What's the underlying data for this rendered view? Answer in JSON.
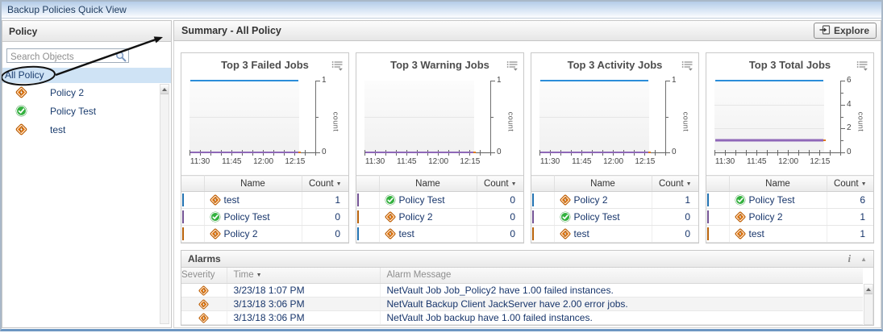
{
  "window": {
    "title": "Backup Policies Quick View"
  },
  "sidebar": {
    "header": "Policy",
    "search_placeholder": "Search Objects",
    "root_item": "All Policy",
    "items": [
      {
        "label": "Policy 2",
        "icon": "policy-warning-icon"
      },
      {
        "label": "Policy Test",
        "icon": "policy-ok-icon"
      },
      {
        "label": "test",
        "icon": "policy-warning-icon"
      }
    ]
  },
  "main": {
    "header": "Summary - All Policy",
    "explore_label": "Explore"
  },
  "table_headers": {
    "name": "Name",
    "count": "Count"
  },
  "icons": {
    "sort_desc": "▼",
    "info": "i",
    "collapse": "▲"
  },
  "colors": {
    "series_blue": "#2b8dd9",
    "series_purple": "#8f68b8",
    "series_orange": "#e2790f",
    "selection_bg": "#cfe3f5"
  },
  "annotation": {
    "circled_item": "All Policy",
    "points_to": "Summary - All Policy"
  },
  "chart_data": [
    {
      "type": "line",
      "title": "Top 3 Failed Jobs",
      "ylabel": "count",
      "ylim": [
        0,
        1
      ],
      "y_major_ticks": [
        1,
        0
      ],
      "y_minor_ticks": [
        0.5
      ],
      "gridlines": [
        0.5
      ],
      "x_ticklabels": [
        "11:30",
        "11:45",
        "12:00",
        "12:15"
      ],
      "series": [
        {
          "name": "test",
          "color": "#2b8dd9",
          "values": [
            1,
            1,
            1,
            1
          ]
        },
        {
          "name": "Policy Test",
          "color": "#8f68b8",
          "values": [
            0,
            0,
            0,
            0
          ]
        },
        {
          "name": "Policy 2",
          "color": "#e2790f",
          "values": [
            0,
            0,
            0,
            0
          ]
        }
      ],
      "table_rows": [
        {
          "swatch": "#2b8dd9",
          "icon": "policy-warning-icon",
          "name": "test",
          "count": "1"
        },
        {
          "swatch": "#8f68b8",
          "icon": "policy-ok-icon",
          "name": "Policy Test",
          "count": "0"
        },
        {
          "swatch": "#e2790f",
          "icon": "policy-warning-icon",
          "name": "Policy 2",
          "count": "0"
        }
      ]
    },
    {
      "type": "line",
      "title": "Top 3 Warning Jobs",
      "ylabel": "count",
      "ylim": [
        0,
        1
      ],
      "y_major_ticks": [
        1,
        0
      ],
      "y_minor_ticks": [
        0.5
      ],
      "gridlines": [
        0.5
      ],
      "x_ticklabels": [
        "11:30",
        "11:45",
        "12:00",
        "12:15"
      ],
      "series": [
        {
          "name": "Policy Test",
          "color": "#8f68b8",
          "values": [
            0,
            0,
            0,
            0
          ]
        },
        {
          "name": "Policy 2",
          "color": "#e2790f",
          "values": [
            0,
            0,
            0,
            0
          ]
        },
        {
          "name": "test",
          "color": "#2b8dd9",
          "values": [
            0,
            0,
            0,
            0
          ]
        }
      ],
      "table_rows": [
        {
          "swatch": "#8f68b8",
          "icon": "policy-ok-icon",
          "name": "Policy Test",
          "count": "0"
        },
        {
          "swatch": "#e2790f",
          "icon": "policy-warning-icon",
          "name": "Policy 2",
          "count": "0"
        },
        {
          "swatch": "#2b8dd9",
          "icon": "policy-warning-icon",
          "name": "test",
          "count": "0"
        }
      ]
    },
    {
      "type": "line",
      "title": "Top 3 Activity Jobs",
      "ylabel": "count",
      "ylim": [
        0,
        1
      ],
      "y_major_ticks": [
        1,
        0
      ],
      "y_minor_ticks": [
        0.5
      ],
      "gridlines": [
        0.5
      ],
      "x_ticklabels": [
        "11:30",
        "11:45",
        "12:00",
        "12:15"
      ],
      "series": [
        {
          "name": "Policy 2",
          "color": "#2b8dd9",
          "values": [
            1,
            1,
            1,
            1
          ]
        },
        {
          "name": "Policy Test",
          "color": "#8f68b8",
          "values": [
            0,
            0,
            0,
            0
          ]
        },
        {
          "name": "test",
          "color": "#e2790f",
          "values": [
            0,
            0,
            0,
            0
          ]
        }
      ],
      "table_rows": [
        {
          "swatch": "#2b8dd9",
          "icon": "policy-warning-icon",
          "name": "Policy 2",
          "count": "1"
        },
        {
          "swatch": "#8f68b8",
          "icon": "policy-ok-icon",
          "name": "Policy Test",
          "count": "0"
        },
        {
          "swatch": "#e2790f",
          "icon": "policy-warning-icon",
          "name": "test",
          "count": "0"
        }
      ]
    },
    {
      "type": "line",
      "title": "Top 3 Total Jobs",
      "ylabel": "count",
      "ylim": [
        0,
        6
      ],
      "y_major_ticks": [
        6,
        4,
        2,
        0
      ],
      "y_minor_ticks": [
        5,
        3,
        1
      ],
      "gridlines": [
        4,
        2
      ],
      "x_ticklabels": [
        "11:30",
        "11:45",
        "12:00",
        "12:15"
      ],
      "series": [
        {
          "name": "Policy Test",
          "color": "#2b8dd9",
          "values": [
            6,
            6,
            6,
            6
          ]
        },
        {
          "name": "Policy 2",
          "color": "#8f68b8",
          "values": [
            1,
            1,
            1,
            1
          ],
          "lw": 3
        },
        {
          "name": "test",
          "color": "#e2790f",
          "values": [
            1,
            1,
            1,
            1
          ]
        }
      ],
      "table_rows": [
        {
          "swatch": "#2b8dd9",
          "icon": "policy-ok-icon",
          "name": "Policy Test",
          "count": "6"
        },
        {
          "swatch": "#8f68b8",
          "icon": "policy-warning-icon",
          "name": "Policy 2",
          "count": "1"
        },
        {
          "swatch": "#e2790f",
          "icon": "policy-warning-icon",
          "name": "test",
          "count": "1"
        }
      ]
    }
  ],
  "alarms": {
    "header": "Alarms",
    "columns": {
      "severity": "Severity",
      "time": "Time",
      "message": "Alarm Message"
    },
    "rows": [
      {
        "severity_icon": "policy-warning-icon",
        "time": "3/23/18 1:07 PM",
        "message": "NetVault Job Job_Policy2 have 1.00 failed instances."
      },
      {
        "severity_icon": "policy-warning-icon",
        "time": "3/13/18 3:06 PM",
        "message": "NetVault Backup Client JackServer have 2.00 error jobs."
      },
      {
        "severity_icon": "policy-warning-icon",
        "time": "3/13/18 3:06 PM",
        "message": "NetVault Job backup have 1.00 failed instances."
      }
    ]
  }
}
